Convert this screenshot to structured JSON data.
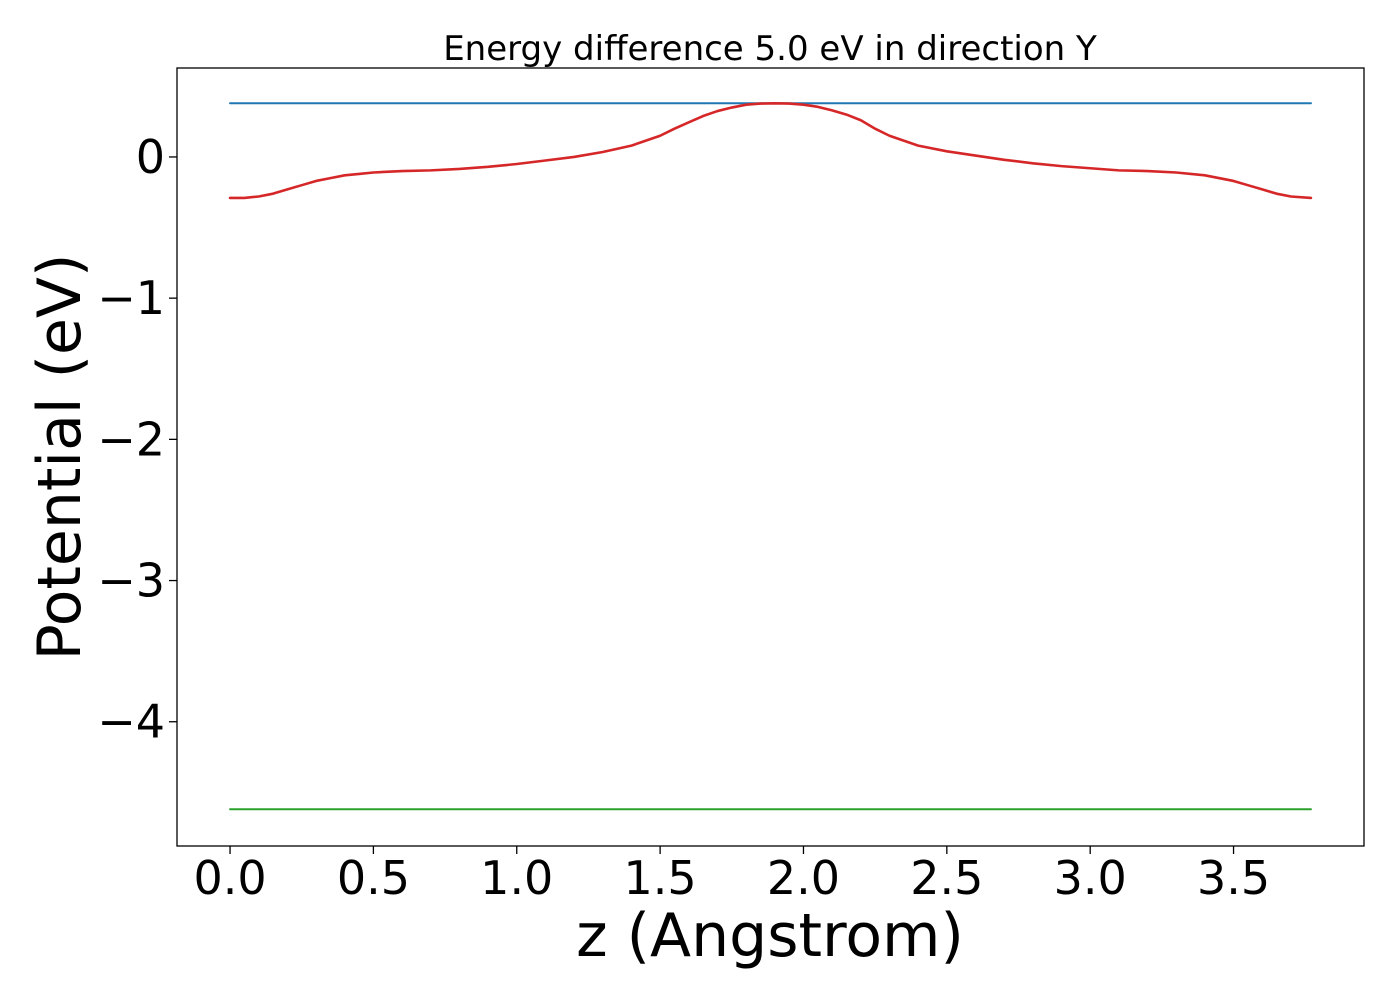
{
  "chart_data": {
    "type": "line",
    "title": "Energy difference 5.0 eV in direction Y",
    "xlabel": "z (Angstrom)",
    "ylabel": "Potential (eV)",
    "xlim": [
      -0.185,
      3.955
    ],
    "ylim": [
      -4.88,
      0.63
    ],
    "xticks": [
      0.0,
      0.5,
      1.0,
      1.5,
      2.0,
      2.5,
      3.0,
      3.5
    ],
    "xtick_labels": [
      "0.0",
      "0.5",
      "1.0",
      "1.5",
      "2.0",
      "2.5",
      "3.0",
      "3.5"
    ],
    "yticks": [
      0,
      -1,
      -2,
      -3,
      -4
    ],
    "ytick_labels": [
      "0",
      "−1",
      "−2",
      "−3",
      "−4"
    ],
    "grid": false,
    "series": [
      {
        "color": "#1f77b4",
        "x": [
          0.0,
          3.77
        ],
        "y": [
          0.38,
          0.38
        ]
      },
      {
        "color": "#2ca02c",
        "x": [
          0.0,
          3.77
        ],
        "y": [
          -4.62,
          -4.62
        ]
      },
      {
        "color": "#d62728",
        "x": [
          0.0,
          0.05,
          0.1,
          0.15,
          0.2,
          0.25,
          0.3,
          0.35,
          0.4,
          0.45,
          0.5,
          0.6,
          0.7,
          0.8,
          0.9,
          1.0,
          1.1,
          1.2,
          1.3,
          1.4,
          1.5,
          1.55,
          1.6,
          1.65,
          1.7,
          1.75,
          1.8,
          1.85,
          1.9,
          1.95,
          2.0,
          2.05,
          2.1,
          2.15,
          2.2,
          2.25,
          2.3,
          2.4,
          2.5,
          2.6,
          2.7,
          2.8,
          2.9,
          3.0,
          3.1,
          3.2,
          3.3,
          3.4,
          3.5,
          3.55,
          3.6,
          3.65,
          3.7,
          3.77
        ],
        "y": [
          -0.29,
          -0.29,
          -0.28,
          -0.26,
          -0.23,
          -0.2,
          -0.17,
          -0.15,
          -0.13,
          -0.12,
          -0.11,
          -0.1,
          -0.095,
          -0.085,
          -0.07,
          -0.05,
          -0.025,
          0.0,
          0.035,
          0.08,
          0.15,
          0.2,
          0.245,
          0.29,
          0.325,
          0.35,
          0.37,
          0.378,
          0.38,
          0.378,
          0.37,
          0.355,
          0.33,
          0.3,
          0.26,
          0.2,
          0.15,
          0.08,
          0.04,
          0.01,
          -0.02,
          -0.045,
          -0.065,
          -0.08,
          -0.095,
          -0.1,
          -0.11,
          -0.13,
          -0.17,
          -0.2,
          -0.23,
          -0.26,
          -0.28,
          -0.29
        ]
      }
    ]
  }
}
